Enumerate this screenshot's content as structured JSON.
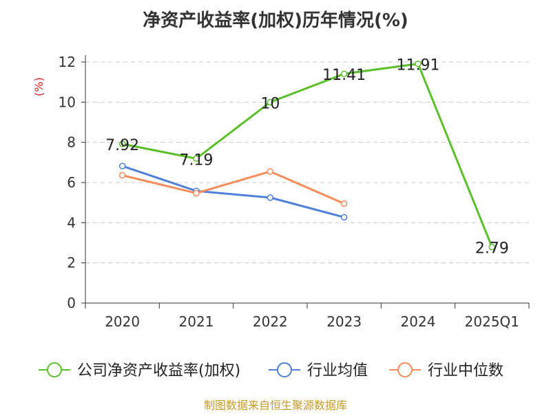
{
  "chart_data": {
    "type": "line",
    "title": "净资产收益率(加权)历年情况(%)",
    "ylabel": "(%)",
    "xlabel": "",
    "categories": [
      "2020",
      "2021",
      "2022",
      "2023",
      "2024",
      "2025Q1"
    ],
    "y_ticks": [
      0,
      2,
      4,
      6,
      8,
      10,
      12
    ],
    "ylim": [
      0,
      12
    ],
    "grid": true,
    "legend_position": "bottom",
    "series": [
      {
        "name": "公司净资产收益率(加权)",
        "color": "#5bbf2a",
        "values": [
          7.92,
          7.19,
          10,
          11.41,
          11.91,
          2.79
        ],
        "data_labels": [
          "7.92",
          "7.19",
          "10",
          "11.41",
          "11.91",
          "2.79"
        ]
      },
      {
        "name": "行业均值",
        "color": "#4f7fdb",
        "values": [
          6.82,
          5.58,
          5.25,
          4.27,
          null,
          null
        ]
      },
      {
        "name": "行业中位数",
        "color": "#f58c5a",
        "values": [
          6.36,
          5.47,
          6.55,
          4.95,
          null,
          null
        ]
      }
    ]
  },
  "source_note": "制图数据来自恒生聚源数据库"
}
